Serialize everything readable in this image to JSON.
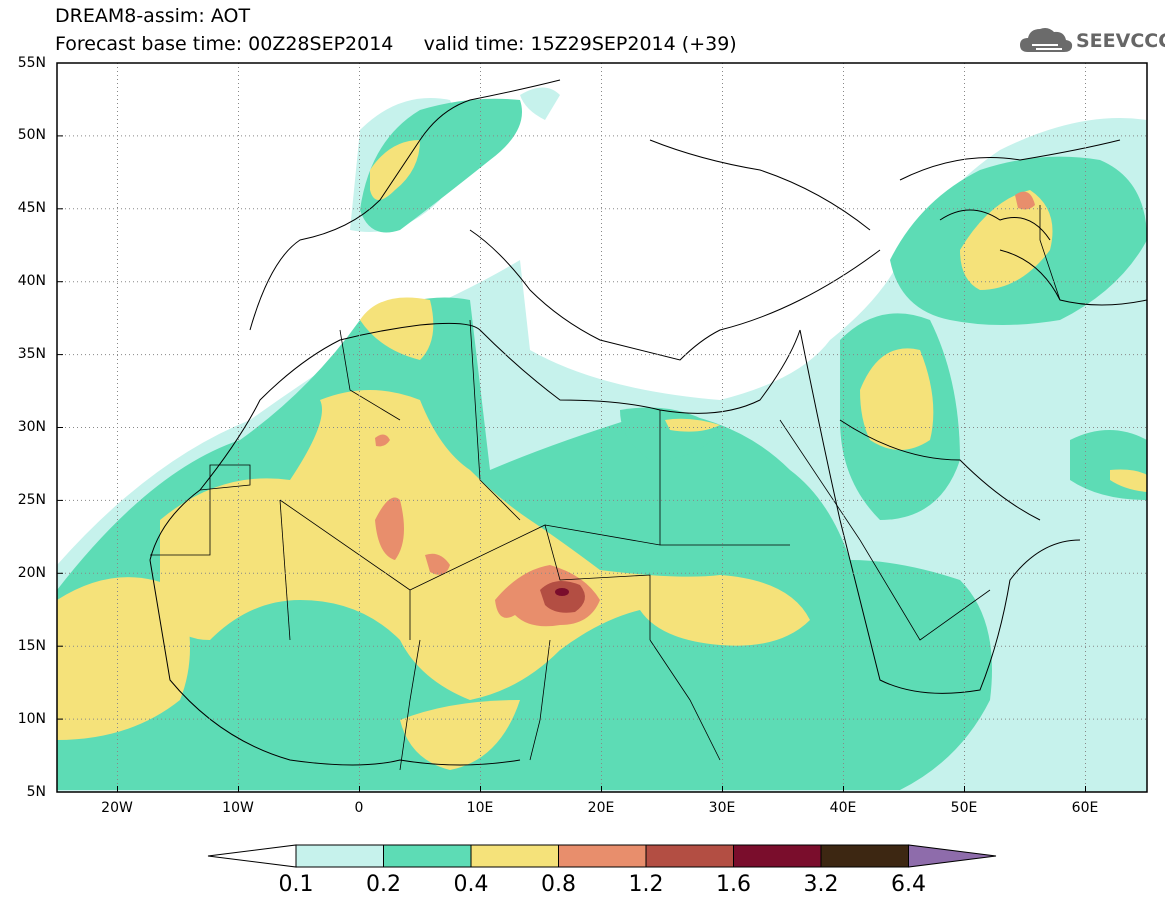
{
  "header": {
    "line1": "DREAM8-assim: AOT",
    "line2": "Forecast base time: 00Z28SEP2014     valid time: 15Z29SEP2014 (+39)"
  },
  "logo": {
    "text": "SEEVCCC",
    "icon": "cloud-icon"
  },
  "map": {
    "lon_range": [
      -25,
      65
    ],
    "lat_range": [
      5,
      55
    ],
    "lat_labels": [
      "55N",
      "50N",
      "45N",
      "40N",
      "35N",
      "30N",
      "25N",
      "20N",
      "15N",
      "10N",
      "5N"
    ],
    "lon_labels": [
      "20W",
      "10W",
      "0",
      "10E",
      "20E",
      "30E",
      "40E",
      "50E",
      "60E"
    ],
    "grid": "dotted"
  },
  "colorbar": {
    "labels": [
      "0.1",
      "0.2",
      "0.4",
      "0.8",
      "1.2",
      "1.6",
      "3.2",
      "6.4"
    ],
    "colors": [
      "#ffffff",
      "#c6f2ec",
      "#5ddcb5",
      "#f5e27a",
      "#e88e6c",
      "#b34e43",
      "#7a0d2c",
      "#3d2712",
      "#8e6cab"
    ]
  }
}
